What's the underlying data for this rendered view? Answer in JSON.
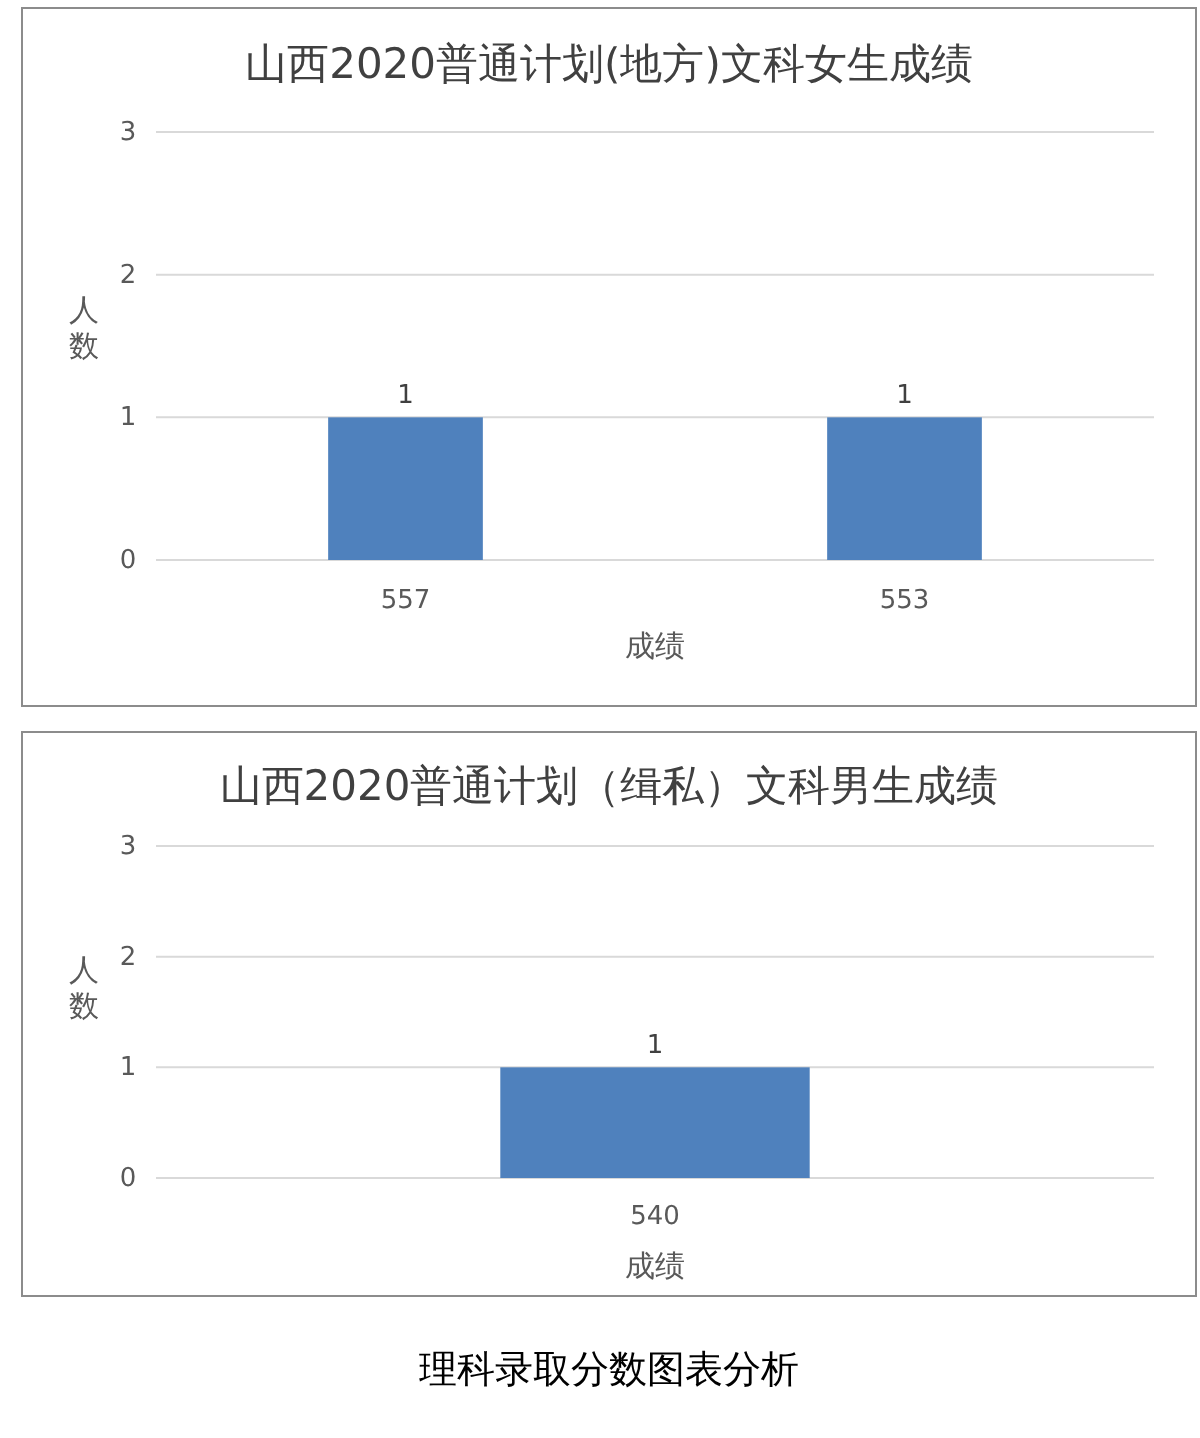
{
  "chart_data": [
    {
      "type": "bar",
      "title": "山西2020普通计划(地方)文科女生成绩",
      "xlabel": "成绩",
      "ylabel": "人数",
      "categories": [
        "557",
        "553"
      ],
      "values": [
        1,
        1
      ],
      "value_labels": [
        "1",
        "1"
      ],
      "color": "#4f81bd",
      "ylim": [
        0,
        3
      ],
      "yticks": [
        0,
        1,
        2,
        3
      ],
      "grid": "y"
    },
    {
      "type": "bar",
      "title": "山西2020普通计划（缉私）文科男生成绩",
      "xlabel": "成绩",
      "ylabel": "人数",
      "categories": [
        "540"
      ],
      "values": [
        1
      ],
      "value_labels": [
        "1"
      ],
      "color": "#4f81bd",
      "ylim": [
        0,
        3
      ],
      "yticks": [
        0,
        1,
        2,
        3
      ],
      "grid": "y",
      "annotations": [
        "理科录取分数图表分析"
      ]
    }
  ]
}
